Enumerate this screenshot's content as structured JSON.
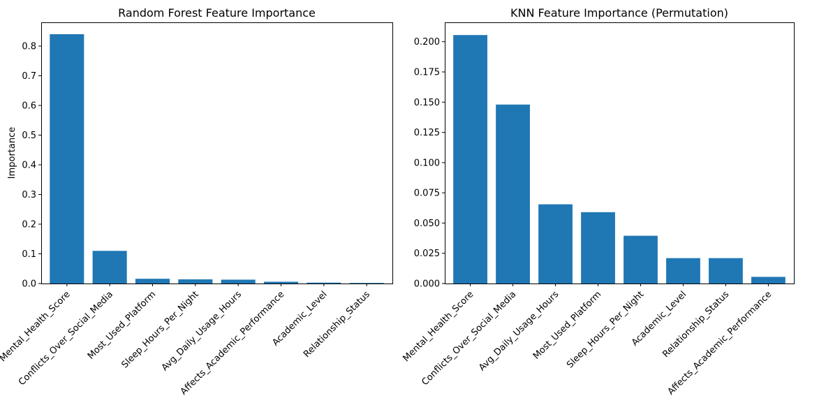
{
  "chart_data": [
    {
      "type": "bar",
      "title": "Random Forest Feature Importance",
      "xlabel": "",
      "ylabel": "Importance",
      "ylim": [
        0,
        0.88
      ],
      "yticks": [
        "0.0",
        "0.1",
        "0.2",
        "0.3",
        "0.4",
        "0.5",
        "0.6",
        "0.7",
        "0.8"
      ],
      "grid": false,
      "color": "#1f77b4",
      "categories": [
        "Mental_Health_Score",
        "Conflicts_Over_Social_Media",
        "Most_Used_Platform",
        "Sleep_Hours_Per_Night",
        "Avg_Daily_Usage_Hours",
        "Affects_Academic_Performance",
        "Academic_Level",
        "Relationship_Status"
      ],
      "values": [
        0.84,
        0.11,
        0.016,
        0.014,
        0.013,
        0.006,
        0.003,
        0.002
      ]
    },
    {
      "type": "bar",
      "title": "KNN Feature Importance (Permutation)",
      "xlabel": "",
      "ylabel": "",
      "ylim": [
        0,
        0.216
      ],
      "yticks": [
        "0.000",
        "0.025",
        "0.050",
        "0.075",
        "0.100",
        "0.125",
        "0.150",
        "0.175",
        "0.200"
      ],
      "grid": false,
      "color": "#1f77b4",
      "categories": [
        "Mental_Health_Score",
        "Conflicts_Over_Social_Media",
        "Avg_Daily_Usage_Hours",
        "Most_Used_Platform",
        "Sleep_Hours_Per_Night",
        "Academic_Level",
        "Relationship_Status",
        "Affects_Academic_Performance"
      ],
      "values": [
        0.2055,
        0.148,
        0.0655,
        0.059,
        0.0395,
        0.021,
        0.021,
        0.0055
      ]
    }
  ]
}
